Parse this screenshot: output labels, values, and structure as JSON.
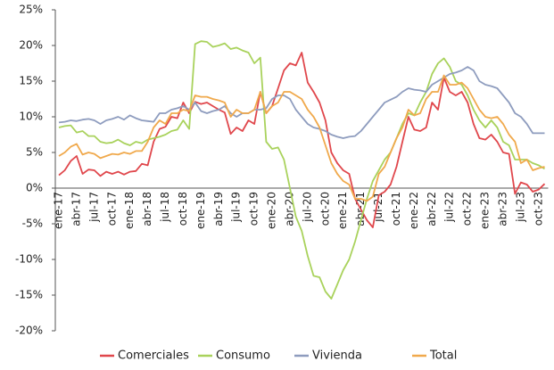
{
  "chart_data": {
    "type": "line",
    "categories": [
      "ene-17",
      null,
      null,
      "abr-17",
      null,
      null,
      "jul-17",
      null,
      null,
      "oct-17",
      null,
      null,
      "ene-18",
      null,
      null,
      "abr-18",
      null,
      null,
      "jul-18",
      null,
      null,
      "oct-18",
      null,
      null,
      "ene-19",
      null,
      null,
      "abr-19",
      null,
      null,
      "jul-19",
      null,
      null,
      "oct-19",
      null,
      null,
      "ene-20",
      null,
      null,
      "abr-20",
      null,
      null,
      "jul-20",
      null,
      null,
      "oct-20",
      null,
      null,
      "ene-21",
      null,
      null,
      "abr-21",
      null,
      null,
      "jul-21",
      null,
      null,
      "oct-21",
      null,
      null,
      "ene-22",
      null,
      null,
      "abr-22",
      null,
      null,
      "jul-22",
      null,
      null,
      "oct-22",
      null,
      null,
      "ene-23",
      null,
      null,
      "abr-23",
      null,
      null,
      "jul-23",
      null,
      null,
      "oct-23",
      null
    ],
    "series": [
      {
        "name": "Comerciales",
        "color": "#e0474c",
        "values": [
          1.8,
          2.5,
          3.8,
          4.5,
          2,
          2.6,
          2.5,
          1.7,
          2.3,
          2,
          2.3,
          1.9,
          2.3,
          2.4,
          3.4,
          3.2,
          6.5,
          8.3,
          8.6,
          10,
          9.8,
          12,
          10.5,
          12.1,
          11.8,
          12,
          11.5,
          11,
          10.6,
          7.6,
          8.5,
          8,
          9.5,
          9,
          13.5,
          10.5,
          11.5,
          14,
          16.5,
          17.5,
          17.2,
          19,
          14.8,
          13.5,
          12,
          9.5,
          5,
          3.5,
          2.5,
          2,
          -1.5,
          -3,
          -4.5,
          -5.5,
          -1,
          -0.5,
          0.5,
          3,
          6.5,
          10,
          8.2,
          8,
          8.5,
          12,
          11,
          15.5,
          13.5,
          13,
          13.5,
          12,
          9,
          7,
          6.8,
          7.5,
          6.5,
          5,
          4.8,
          -0.8,
          0.8,
          0.5,
          -0.5,
          -0.2,
          0.6
        ]
      },
      {
        "name": "Consumo",
        "color": "#a9d25c",
        "values": [
          8.5,
          8.7,
          8.8,
          7.8,
          8,
          7.3,
          7.3,
          6.5,
          6.3,
          6.4,
          6.8,
          6.3,
          6,
          6.5,
          6.3,
          6.8,
          7,
          7.2,
          7.5,
          8,
          8.2,
          9.5,
          8.3,
          20.2,
          20.6,
          20.5,
          19.8,
          20,
          20.3,
          19.5,
          19.7,
          19.3,
          19,
          17.5,
          18.3,
          6.5,
          5.5,
          5.7,
          4,
          0,
          -4,
          -6,
          -9.5,
          -12.3,
          -12.5,
          -14.5,
          -15.5,
          -13.5,
          -11.5,
          -10,
          -7.5,
          -4.5,
          -1.5,
          1,
          2.5,
          4,
          5,
          7,
          9,
          10.5,
          10.2,
          12,
          13.5,
          16,
          17.5,
          18.2,
          17,
          15,
          14.5,
          13,
          11,
          9.5,
          8.5,
          9.5,
          8.5,
          6.5,
          6,
          4,
          4,
          4,
          3.5,
          3.2,
          2.7
        ]
      },
      {
        "name": "Vivienda",
        "color": "#8e9cbe",
        "values": [
          9.2,
          9.3,
          9.5,
          9.4,
          9.6,
          9.7,
          9.5,
          9,
          9.5,
          9.7,
          10,
          9.6,
          10.2,
          9.8,
          9.5,
          9.4,
          9.3,
          10.5,
          10.5,
          11,
          11.2,
          11.5,
          11,
          12,
          10.8,
          10.5,
          10.8,
          11,
          11.5,
          10.5,
          10,
          10.5,
          10.5,
          11,
          11,
          11.2,
          12.5,
          13,
          13,
          12.5,
          11,
          10,
          9,
          8.5,
          8.3,
          8,
          7.5,
          7.2,
          7,
          7.2,
          7.3,
          8,
          9,
          10,
          11,
          12,
          12.4,
          12.8,
          13.5,
          14,
          13.8,
          13.7,
          13.5,
          14.5,
          15,
          15.5,
          16,
          16.2,
          16.5,
          17,
          16.5,
          15,
          14.5,
          14.3,
          14,
          13,
          12,
          10.5,
          10,
          9,
          7.7,
          7.7,
          7.7
        ]
      },
      {
        "name": "Total",
        "color": "#f0a94c",
        "values": [
          4.5,
          5,
          5.8,
          6.2,
          4.7,
          5,
          4.8,
          4.2,
          4.5,
          4.8,
          4.7,
          5,
          4.8,
          5.2,
          5.2,
          6.5,
          8.5,
          9.5,
          9,
          10.5,
          10.5,
          11,
          10.8,
          13,
          12.8,
          12.8,
          12.5,
          12.3,
          12,
          10,
          11,
          10.5,
          10.5,
          11,
          13.5,
          10.5,
          11.5,
          12,
          13.5,
          13.5,
          13,
          12.5,
          11,
          10,
          8.5,
          6,
          3.5,
          2,
          1,
          0.5,
          -1.5,
          -1.5,
          -1.8,
          -1.2,
          2,
          3,
          5,
          7,
          8.5,
          11,
          10.2,
          10.5,
          12.5,
          13.5,
          13.5,
          15.8,
          14.5,
          14.5,
          14.8,
          14,
          12.5,
          11,
          10,
          9.8,
          10,
          9,
          7.5,
          6.5,
          3.5,
          4,
          2.5,
          2.8,
          3
        ]
      }
    ],
    "ylim": [
      -20,
      25
    ],
    "yticks": [
      {
        "value": -20,
        "label": "-20%"
      },
      {
        "value": -15,
        "label": "-15%"
      },
      {
        "value": -10,
        "label": "-10%"
      },
      {
        "value": -5,
        "label": "-5%"
      },
      {
        "value": 0,
        "label": "0%"
      },
      {
        "value": 5,
        "label": "5%"
      },
      {
        "value": 10,
        "label": "10%"
      },
      {
        "value": 15,
        "label": "15%"
      },
      {
        "value": 20,
        "label": "20%"
      },
      {
        "value": 25,
        "label": "25%"
      }
    ],
    "grid": false,
    "legend": "bottom"
  }
}
